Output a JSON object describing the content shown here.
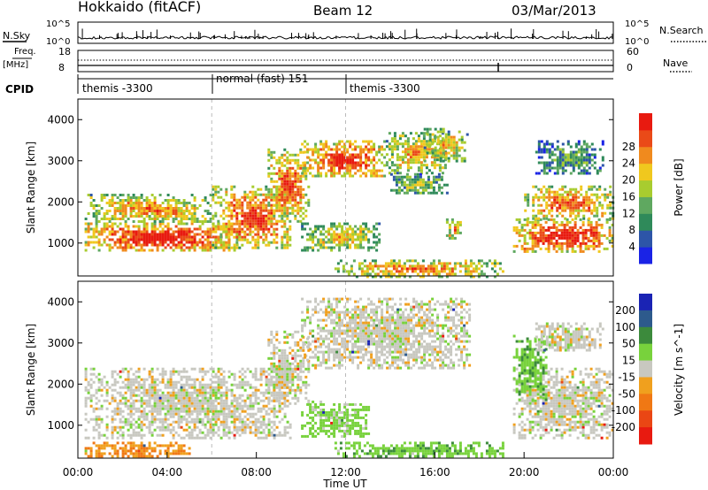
{
  "header": {
    "station": "Hokkaido (fitACF)",
    "beam": "Beam 12",
    "date": "03/Mar/2013"
  },
  "sky_panel": {
    "left_label": "N.Sky",
    "left_ticks": [
      "10^5",
      "10^0"
    ],
    "right_ticks": [
      "10^5",
      "10^0"
    ],
    "right_label": "N.Search"
  },
  "freq_panel": {
    "left_label_1": "Freq.",
    "left_label_2": "[MHz]",
    "left_ticks": [
      "18",
      "8"
    ],
    "right_ticks": [
      "60",
      "0"
    ],
    "right_label": "Nave"
  },
  "cpid_panel": {
    "label": "CPID",
    "segments": [
      {
        "label": "themis -3300",
        "start_hour": 0,
        "end_hour": 6
      },
      {
        "label": "normal (fast) 151",
        "start_hour": 6,
        "end_hour": 12
      },
      {
        "label": "themis -3300",
        "start_hour": 12,
        "end_hour": 24
      }
    ]
  },
  "chart_data": [
    {
      "type": "heatmap",
      "name": "power",
      "xlabel": "Time UT",
      "ylabel": "Slant Range [km]",
      "xlim": [
        0,
        24
      ],
      "ylim": [
        200,
        4500
      ],
      "yticks": [
        1000,
        2000,
        3000,
        4000
      ],
      "colorbar": {
        "label": "Power [dB]",
        "ticks": [
          4,
          8,
          12,
          16,
          20,
          24,
          28
        ],
        "colors": [
          "#1a23e6",
          "#2d55a8",
          "#2f8a5a",
          "#5fa860",
          "#a8cc2f",
          "#f0c81e",
          "#f08a1e",
          "#ea4a18",
          "#e81a10"
        ]
      },
      "regions": [
        {
          "t": [
            0.3,
            7.2
          ],
          "r": [
            800,
            1500
          ],
          "level": 0.95
        },
        {
          "t": [
            0.3,
            6.0
          ],
          "r": [
            1500,
            2200
          ],
          "level": 0.7
        },
        {
          "t": [
            6.0,
            9.5
          ],
          "r": [
            900,
            2400
          ],
          "level": 0.85
        },
        {
          "t": [
            8.5,
            10.3
          ],
          "r": [
            1500,
            3300
          ],
          "level": 0.8
        },
        {
          "t": [
            10.0,
            13.8
          ],
          "r": [
            2600,
            3500
          ],
          "level": 0.9
        },
        {
          "t": [
            13.8,
            16.5
          ],
          "r": [
            2700,
            3700
          ],
          "level": 0.65
        },
        {
          "t": [
            14.0,
            16.5
          ],
          "r": [
            2200,
            2700
          ],
          "level": 0.45
        },
        {
          "t": [
            15.5,
            17.5
          ],
          "r": [
            3000,
            3800
          ],
          "level": 0.6
        },
        {
          "t": [
            10.0,
            13.5
          ],
          "r": [
            800,
            1500
          ],
          "level": 0.6
        },
        {
          "t": [
            16.5,
            17.2
          ],
          "r": [
            1100,
            1600
          ],
          "level": 0.7
        },
        {
          "t": [
            11.5,
            19.0
          ],
          "r": [
            200,
            600
          ],
          "level": 0.75
        },
        {
          "t": [
            19.5,
            24.0
          ],
          "r": [
            800,
            1600
          ],
          "level": 0.95
        },
        {
          "t": [
            20.0,
            24.0
          ],
          "r": [
            1600,
            2400
          ],
          "level": 0.8
        },
        {
          "t": [
            20.5,
            23.5
          ],
          "r": [
            2700,
            3500
          ],
          "level": 0.35
        }
      ]
    },
    {
      "type": "heatmap",
      "name": "velocity",
      "xlabel": "Time UT",
      "ylabel": "Slant Range [km]",
      "xlim": [
        0,
        24
      ],
      "ylim": [
        200,
        4500
      ],
      "yticks": [
        1000,
        2000,
        3000,
        4000
      ],
      "xticks": [
        "00:00",
        "04:00",
        "08:00",
        "12:00",
        "16:00",
        "20:00",
        "00:00"
      ],
      "colorbar": {
        "label": "Velocity [m s^-1]",
        "ticks": [
          200,
          100,
          50,
          15,
          -15,
          -50,
          -100,
          -200
        ],
        "colors": [
          "#1a23b4",
          "#2d5a8c",
          "#3c8a3c",
          "#78d23c",
          "#c8c8c0",
          "#f0a01e",
          "#f07814",
          "#ea4614",
          "#e81a10"
        ]
      },
      "regions": [
        {
          "t": [
            0.3,
            9.5
          ],
          "r": [
            700,
            2400
          ],
          "value": 0
        },
        {
          "t": [
            8.5,
            10.3
          ],
          "r": [
            1500,
            3300
          ],
          "value": 0
        },
        {
          "t": [
            10.0,
            17.5
          ],
          "r": [
            2400,
            4100
          ],
          "value": 0
        },
        {
          "t": [
            10.0,
            13.0
          ],
          "r": [
            700,
            1600
          ],
          "value": 30
        },
        {
          "t": [
            11.5,
            19.0
          ],
          "r": [
            250,
            600
          ],
          "value": 40
        },
        {
          "t": [
            0.3,
            5.0
          ],
          "r": [
            250,
            600
          ],
          "value": -50
        },
        {
          "t": [
            19.5,
            24.0
          ],
          "r": [
            700,
            2400
          ],
          "value": 0
        },
        {
          "t": [
            19.5,
            21.0
          ],
          "r": [
            1600,
            3200
          ],
          "value": 40
        },
        {
          "t": [
            20.5,
            23.5
          ],
          "r": [
            2800,
            3500
          ],
          "value": 0
        }
      ]
    }
  ]
}
